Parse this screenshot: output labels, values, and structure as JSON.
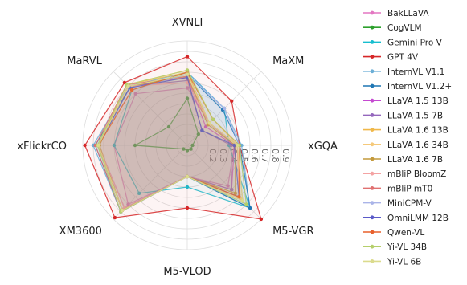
{
  "chart_data": {
    "type": "radar",
    "axes": [
      "XVNLI",
      "MaXM",
      "xGQA",
      "M5-VGR",
      "M5-VLOD",
      "XM3600",
      "xFlickrCO",
      "MaRVL"
    ],
    "rlim": [
      0,
      1
    ],
    "ticks": [
      "0.2",
      "0.3",
      "0.4",
      "0.5",
      "0.6",
      "0.7",
      "0.8",
      "0.9"
    ],
    "grid": true,
    "legend_position": "right",
    "series": [
      {
        "name": "BakLLaVA",
        "color": "#e377c2",
        "values": [
          0.55,
          0.3,
          0.45,
          0.55,
          0.3,
          0.8,
          0.7,
          0.7
        ]
      },
      {
        "name": "CogVLM",
        "color": "#2ca02c",
        "values": [
          0.45,
          0.15,
          0.05,
          0.05,
          0.05,
          0.05,
          0.5,
          0.25
        ]
      },
      {
        "name": "Gemini Pro V",
        "color": "#17becf",
        "values": [
          0.7,
          0.5,
          0.4,
          0.85,
          0.4,
          0.65,
          0.7,
          0.75
        ]
      },
      {
        "name": "GPT 4V",
        "color": "#d62728",
        "values": [
          0.85,
          0.6,
          0.5,
          1.0,
          0.6,
          0.98,
          0.98,
          0.85
        ]
      },
      {
        "name": "InternVL V1.1",
        "color": "#6baed6",
        "values": [
          0.7,
          0.5,
          0.52,
          0.85,
          0.3,
          0.9,
          0.9,
          0.8
        ]
      },
      {
        "name": "InternVL V1.2+",
        "color": "#1f77b4",
        "values": [
          0.68,
          0.48,
          0.5,
          0.85,
          0.3,
          0.9,
          0.88,
          0.78
        ]
      },
      {
        "name": "LLaVA 1.5 13B",
        "color": "#c54ad1",
        "values": [
          0.65,
          0.25,
          0.45,
          0.6,
          0.3,
          0.85,
          0.85,
          0.8
        ]
      },
      {
        "name": "LLaVA 1.5 7B",
        "color": "#9467bd",
        "values": [
          0.62,
          0.2,
          0.42,
          0.6,
          0.3,
          0.85,
          0.85,
          0.8
        ]
      },
      {
        "name": "LLaVA 1.6 13B",
        "color": "#f0b84a",
        "values": [
          0.7,
          0.3,
          0.48,
          0.7,
          0.3,
          0.88,
          0.85,
          0.82
        ]
      },
      {
        "name": "LLaVA 1.6 34B",
        "color": "#f5c97a",
        "values": [
          0.72,
          0.35,
          0.48,
          0.72,
          0.3,
          0.88,
          0.86,
          0.82
        ]
      },
      {
        "name": "LLaVA 1.6 7B",
        "color": "#c49a3c",
        "values": [
          0.66,
          0.28,
          0.46,
          0.65,
          0.3,
          0.88,
          0.84,
          0.8
        ]
      },
      {
        "name": "mBliP BloomZ",
        "color": "#f4a3a3",
        "values": [
          0.6,
          0.3,
          0.48,
          0.7,
          0.3,
          0.85,
          0.85,
          0.8
        ]
      },
      {
        "name": "mBliP mT0",
        "color": "#e07070",
        "values": [
          0.66,
          0.3,
          0.48,
          0.75,
          0.3,
          0.9,
          0.88,
          0.82
        ]
      },
      {
        "name": "MiniCPM-V",
        "color": "#aab4e8",
        "values": [
          0.68,
          0.5,
          0.5,
          0.8,
          0.3,
          0.9,
          0.86,
          0.75
        ]
      },
      {
        "name": "OmniLMM 12B",
        "color": "#5a5ac8",
        "values": [
          0.65,
          0.2,
          0.45,
          0.7,
          0.3,
          0.88,
          0.85,
          0.78
        ]
      },
      {
        "name": "Qwen-VL",
        "color": "#e8602c",
        "values": [
          0.7,
          0.35,
          0.5,
          0.7,
          0.3,
          0.88,
          0.85,
          0.75
        ]
      },
      {
        "name": "Yi-VL 34B",
        "color": "#b5cf6b",
        "values": [
          0.72,
          0.35,
          0.5,
          0.8,
          0.3,
          0.9,
          0.86,
          0.82
        ]
      },
      {
        "name": "Yi-VL 6B",
        "color": "#dbdb8d",
        "values": [
          0.68,
          0.3,
          0.48,
          0.75,
          0.3,
          0.88,
          0.85,
          0.8
        ]
      }
    ]
  }
}
